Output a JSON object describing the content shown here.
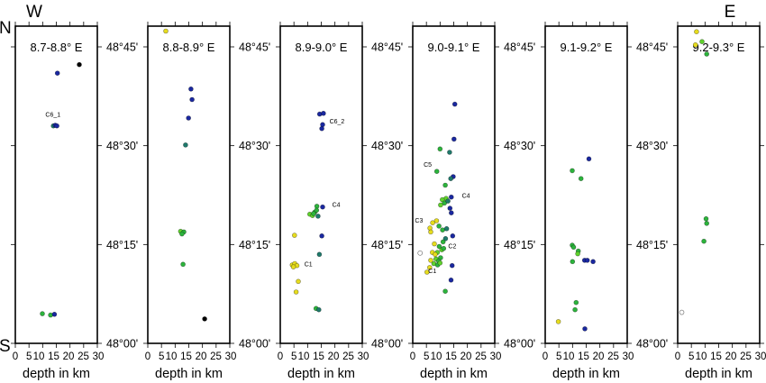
{
  "chart_data": {
    "type": "scatter",
    "compass": {
      "west": "W",
      "east": "E",
      "north": "N",
      "south": "S"
    },
    "xlabel": "depth in km",
    "xlim": [
      0,
      30
    ],
    "x_ticks": [
      0,
      5,
      10,
      15,
      20,
      25,
      30
    ],
    "x_tick_labels": [
      "0",
      "5",
      "10",
      "15",
      "20",
      "25",
      "30"
    ],
    "ylim_minutes": [
      0,
      48.1
    ],
    "y_ticks_minutes": [
      45,
      30,
      15,
      0
    ],
    "y_tick_labels": [
      "48°45'",
      "48°30'",
      "48°15'",
      "48°00'"
    ],
    "colors": {
      "yellow": "#e6dc1e",
      "lime": "#5fd22c",
      "green": "#2cb43c",
      "teal": "#1f7a6c",
      "blue": "#1a28a0",
      "black": "#000000",
      "open": "#ffffff"
    },
    "panels": [
      {
        "title": "8.7-8.8° E",
        "points": [
          {
            "depth": 23.4,
            "lat": 42.3,
            "c": "black"
          },
          {
            "depth": 15.4,
            "lat": 41.0,
            "c": "blue"
          },
          {
            "depth": 13.9,
            "lat": 33.0,
            "c": "teal"
          },
          {
            "depth": 14.6,
            "lat": 33.1,
            "c": "blue"
          },
          {
            "depth": 15.2,
            "lat": 33.0,
            "c": "blue"
          },
          {
            "depth": 9.9,
            "lat": 4.5,
            "c": "green"
          },
          {
            "depth": 12.9,
            "lat": 4.3,
            "c": "green"
          },
          {
            "depth": 14.3,
            "lat": 4.4,
            "c": "blue"
          }
        ],
        "labels": [
          {
            "text": "C6_1",
            "depth": 11.0,
            "lat": 34.4
          }
        ]
      },
      {
        "title": "8.8-8.9° E",
        "points": [
          {
            "depth": 6.6,
            "lat": 47.4,
            "c": "yellow"
          },
          {
            "depth": 15.8,
            "lat": 38.6,
            "c": "blue"
          },
          {
            "depth": 16.2,
            "lat": 37.0,
            "c": "blue"
          },
          {
            "depth": 14.9,
            "lat": 34.2,
            "c": "blue"
          },
          {
            "depth": 13.8,
            "lat": 30.1,
            "c": "teal"
          },
          {
            "depth": 12.0,
            "lat": 17.0,
            "c": "lime"
          },
          {
            "depth": 13.2,
            "lat": 16.9,
            "c": "green"
          },
          {
            "depth": 12.5,
            "lat": 16.6,
            "c": "green"
          },
          {
            "depth": 12.9,
            "lat": 12.0,
            "c": "green"
          },
          {
            "depth": 20.8,
            "lat": 3.7,
            "c": "black"
          }
        ],
        "labels": []
      },
      {
        "title": "8.9-9.0° E",
        "points": [
          {
            "depth": 14.4,
            "lat": 34.8,
            "c": "blue"
          },
          {
            "depth": 15.8,
            "lat": 34.9,
            "c": "blue"
          },
          {
            "depth": 15.5,
            "lat": 33.2,
            "c": "blue"
          },
          {
            "depth": 15.2,
            "lat": 32.6,
            "c": "blue"
          },
          {
            "depth": 13.4,
            "lat": 20.8,
            "c": "green"
          },
          {
            "depth": 15.5,
            "lat": 20.7,
            "c": "blue"
          },
          {
            "depth": 10.8,
            "lat": 19.6,
            "c": "lime"
          },
          {
            "depth": 11.8,
            "lat": 19.4,
            "c": "lime"
          },
          {
            "depth": 12.6,
            "lat": 19.9,
            "c": "green"
          },
          {
            "depth": 13.3,
            "lat": 20.2,
            "c": "green"
          },
          {
            "depth": 12.2,
            "lat": 19.7,
            "c": "green"
          },
          {
            "depth": 13.8,
            "lat": 19.3,
            "c": "teal"
          },
          {
            "depth": 15.2,
            "lat": 16.3,
            "c": "blue"
          },
          {
            "depth": 5.2,
            "lat": 16.4,
            "c": "yellow"
          },
          {
            "depth": 14.3,
            "lat": 13.5,
            "c": "teal"
          },
          {
            "depth": 4.4,
            "lat": 11.9,
            "c": "yellow"
          },
          {
            "depth": 5.3,
            "lat": 12.1,
            "c": "yellow"
          },
          {
            "depth": 6.1,
            "lat": 11.8,
            "c": "yellow"
          },
          {
            "depth": 4.8,
            "lat": 11.6,
            "c": "yellow"
          },
          {
            "depth": 6.6,
            "lat": 9.4,
            "c": "yellow"
          },
          {
            "depth": 5.8,
            "lat": 7.8,
            "c": "yellow"
          },
          {
            "depth": 13.1,
            "lat": 5.3,
            "c": "green"
          },
          {
            "depth": 14.1,
            "lat": 5.1,
            "c": "teal"
          }
        ],
        "labels": [
          {
            "text": "C6_2",
            "depth": 18.0,
            "lat": 33.4
          },
          {
            "text": "C4",
            "depth": 19.0,
            "lat": 20.7
          },
          {
            "text": "C1",
            "depth": 8.8,
            "lat": 11.7
          }
        ]
      },
      {
        "title": "9.0-9.1° E",
        "points": [
          {
            "depth": 15.4,
            "lat": 36.3,
            "c": "blue"
          },
          {
            "depth": 15.1,
            "lat": 31.0,
            "c": "blue"
          },
          {
            "depth": 10.0,
            "lat": 29.5,
            "c": "green"
          },
          {
            "depth": 13.5,
            "lat": 29.0,
            "c": "teal"
          },
          {
            "depth": 8.8,
            "lat": 26.1,
            "c": "green"
          },
          {
            "depth": 14.8,
            "lat": 25.3,
            "c": "blue"
          },
          {
            "depth": 13.9,
            "lat": 25.0,
            "c": "teal"
          },
          {
            "depth": 11.9,
            "lat": 24.0,
            "c": "green"
          },
          {
            "depth": 14.1,
            "lat": 22.2,
            "c": "blue"
          },
          {
            "depth": 12.2,
            "lat": 22.0,
            "c": "lime"
          },
          {
            "depth": 10.8,
            "lat": 21.8,
            "c": "lime"
          },
          {
            "depth": 11.6,
            "lat": 21.3,
            "c": "green"
          },
          {
            "depth": 12.9,
            "lat": 21.6,
            "c": "teal"
          },
          {
            "depth": 10.2,
            "lat": 21.0,
            "c": "lime"
          },
          {
            "depth": 13.6,
            "lat": 20.5,
            "c": "blue"
          },
          {
            "depth": 14.1,
            "lat": 19.8,
            "c": "blue"
          },
          {
            "depth": 8.7,
            "lat": 18.6,
            "c": "yellow"
          },
          {
            "depth": 7.3,
            "lat": 18.3,
            "c": "yellow"
          },
          {
            "depth": 9.6,
            "lat": 17.8,
            "c": "green"
          },
          {
            "depth": 10.9,
            "lat": 17.2,
            "c": "green"
          },
          {
            "depth": 12.4,
            "lat": 17.4,
            "c": "teal"
          },
          {
            "depth": 6.3,
            "lat": 17.5,
            "c": "yellow"
          },
          {
            "depth": 6.6,
            "lat": 16.9,
            "c": "yellow"
          },
          {
            "depth": 14.6,
            "lat": 16.3,
            "c": "blue"
          },
          {
            "depth": 12.0,
            "lat": 15.9,
            "c": "teal"
          },
          {
            "depth": 11.1,
            "lat": 15.4,
            "c": "green"
          },
          {
            "depth": 7.9,
            "lat": 15.1,
            "c": "yellow"
          },
          {
            "depth": 9.7,
            "lat": 14.7,
            "c": "green"
          },
          {
            "depth": 10.6,
            "lat": 14.2,
            "c": "lime"
          },
          {
            "depth": 11.3,
            "lat": 14.4,
            "c": "green"
          },
          {
            "depth": 9.0,
            "lat": 13.8,
            "c": "lime"
          },
          {
            "depth": 2.7,
            "lat": 13.7,
            "c": "open"
          },
          {
            "depth": 7.2,
            "lat": 13.8,
            "c": "yellow"
          },
          {
            "depth": 8.2,
            "lat": 13.5,
            "c": "yellow"
          },
          {
            "depth": 10.2,
            "lat": 13.0,
            "c": "green"
          },
          {
            "depth": 8.5,
            "lat": 12.8,
            "c": "lime"
          },
          {
            "depth": 9.5,
            "lat": 12.5,
            "c": "green"
          },
          {
            "depth": 6.6,
            "lat": 12.6,
            "c": "yellow"
          },
          {
            "depth": 7.7,
            "lat": 12.1,
            "c": "lime"
          },
          {
            "depth": 9.1,
            "lat": 11.9,
            "c": "green"
          },
          {
            "depth": 10.0,
            "lat": 12.2,
            "c": "lime"
          },
          {
            "depth": 6.2,
            "lat": 11.5,
            "c": "yellow"
          },
          {
            "depth": 14.4,
            "lat": 11.8,
            "c": "blue"
          },
          {
            "depth": 5.2,
            "lat": 10.8,
            "c": "yellow"
          },
          {
            "depth": 14.0,
            "lat": 9.6,
            "c": "blue"
          },
          {
            "depth": 11.9,
            "lat": 7.9,
            "c": "green"
          }
        ],
        "labels": [
          {
            "text": "C5",
            "depth": 4.0,
            "lat": 26.8
          },
          {
            "text": "C4",
            "depth": 18.0,
            "lat": 22.1
          },
          {
            "text": "C3",
            "depth": 0.8,
            "lat": 18.3
          },
          {
            "text": "C2",
            "depth": 13.0,
            "lat": 14.4
          },
          {
            "text": "C1",
            "depth": 5.7,
            "lat": 10.7
          }
        ]
      },
      {
        "title": "9.1-9.2° E",
        "points": [
          {
            "depth": 16.0,
            "lat": 28.0,
            "c": "blue"
          },
          {
            "depth": 9.9,
            "lat": 26.2,
            "c": "green"
          },
          {
            "depth": 13.1,
            "lat": 25.0,
            "c": "green"
          },
          {
            "depth": 9.9,
            "lat": 14.9,
            "c": "green"
          },
          {
            "depth": 10.4,
            "lat": 14.6,
            "c": "green"
          },
          {
            "depth": 12.1,
            "lat": 14.0,
            "c": "green"
          },
          {
            "depth": 11.9,
            "lat": 13.6,
            "c": "lime"
          },
          {
            "depth": 10.0,
            "lat": 12.4,
            "c": "green"
          },
          {
            "depth": 14.4,
            "lat": 12.6,
            "c": "blue"
          },
          {
            "depth": 15.4,
            "lat": 12.6,
            "c": "blue"
          },
          {
            "depth": 17.5,
            "lat": 12.4,
            "c": "blue"
          },
          {
            "depth": 11.3,
            "lat": 6.2,
            "c": "green"
          },
          {
            "depth": 10.9,
            "lat": 5.1,
            "c": "green"
          },
          {
            "depth": 4.8,
            "lat": 3.3,
            "c": "yellow"
          },
          {
            "depth": 14.5,
            "lat": 2.2,
            "c": "blue"
          }
        ],
        "labels": []
      },
      {
        "title": "9.2-9.3° E",
        "points": [
          {
            "depth": 6.9,
            "lat": 47.3,
            "c": "yellow"
          },
          {
            "depth": 6.5,
            "lat": 45.3,
            "c": "yellow"
          },
          {
            "depth": 8.9,
            "lat": 45.8,
            "c": "lime"
          },
          {
            "depth": 10.6,
            "lat": 43.9,
            "c": "green"
          },
          {
            "depth": 10.4,
            "lat": 18.9,
            "c": "green"
          },
          {
            "depth": 10.6,
            "lat": 18.2,
            "c": "green"
          },
          {
            "depth": 9.6,
            "lat": 15.5,
            "c": "green"
          },
          {
            "depth": 1.5,
            "lat": 4.7,
            "c": "open"
          }
        ],
        "labels": []
      }
    ]
  }
}
